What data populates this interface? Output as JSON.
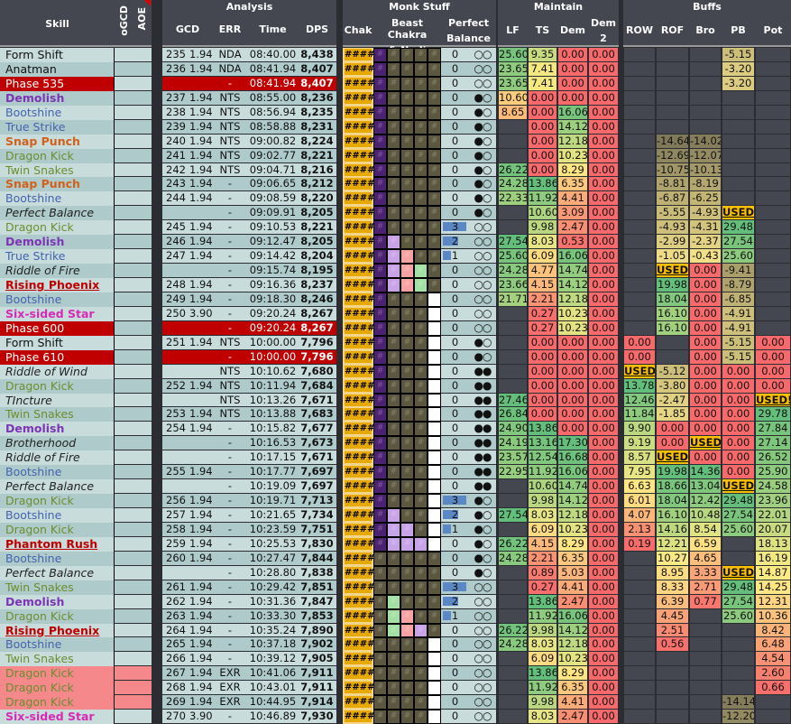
{
  "header": {
    "groups": {
      "analysis": "Analysis",
      "monk": "Monk Stuff",
      "maintain": "Maintain",
      "buffs": "Buffs"
    },
    "columns": {
      "skill": "Skill",
      "ogcd": "oGCD",
      "aoe": "AOE",
      "gcd": "GCD",
      "err": "ERR",
      "time": "Time",
      "dps": "DPS",
      "chak": "Chak",
      "beast_1": "Beast Chakra",
      "beast_2": "& Nadi",
      "pb_1": "Perfect",
      "pb_2": "Balance",
      "lf": "LF",
      "ts": "TS",
      "dem": "Dem",
      "dem2_1": "Dem",
      "dem2_2": "2",
      "row": "ROW",
      "rof": "ROF",
      "bro": "Bro",
      "pb": "PB",
      "pot": "Pot"
    }
  },
  "colors": {
    "phase_row": "#c00000",
    "used": "#ffc000",
    "low": "#f8696b",
    "mid": "#ffeb84",
    "high": "#63be7b",
    "chak": "#e7a800",
    "beast_purple": "#4b2272",
    "beast_lavender": "#c9a3e8",
    "beast_pink": "#f7a3a3",
    "beast_green": "#a3e0a3",
    "beast_white": "#ffffff",
    "beast_empty": "#5c573f"
  },
  "rows": [
    {
      "s": "Form Shift",
      "t": "plain",
      "n": "235",
      "g": "1.94",
      "e": "NDA",
      "tm": "08:40.00",
      "d": "8,438",
      "b": "P....",
      "pb": "0",
      "c": "○○",
      "lf": "25.60",
      "ts": "9.35",
      "dem": "0.00",
      "dem2": "0.00",
      "row": "",
      "rof": "",
      "bro": "",
      "pbf": "-5.15",
      "pot": ""
    },
    {
      "s": "Anatman",
      "t": "plain",
      "n": "236",
      "g": "1.94",
      "e": "NDA",
      "tm": "08:41.94",
      "d": "8,407",
      "b": "P....",
      "pb": "0",
      "c": "○○",
      "lf": "23.65",
      "ts": "7.41",
      "dem": "0.00",
      "dem2": "0.00",
      "row": "",
      "rof": "",
      "bro": "",
      "pbf": "-3.20",
      "pot": ""
    },
    {
      "s": "Phase 535",
      "t": "phase",
      "n": "",
      "g": "",
      "e": "-",
      "tm": "08:41.94",
      "d": "8,407",
      "b": "P....",
      "pb": "0",
      "c": "○○",
      "lf": "23.65",
      "ts": "7.41",
      "dem": "0.00",
      "dem2": "0.00",
      "row": "",
      "rof": "",
      "bro": "",
      "pbf": "-3.20",
      "pot": ""
    },
    {
      "s": "Demolish",
      "t": "demolish",
      "n": "237",
      "g": "1.94",
      "e": "NTS",
      "tm": "08:55.00",
      "d": "8,236",
      "b": "P....",
      "pb": "0",
      "c": "●○",
      "lf": "10.60",
      "ts": "0.00",
      "dem": "0.00",
      "dem2": "0.00",
      "row": "",
      "rof": "",
      "bro": "",
      "pbf": "",
      "pot": ""
    },
    {
      "s": "Bootshine",
      "t": "blue",
      "n": "238",
      "g": "1.94",
      "e": "NTS",
      "tm": "08:56.94",
      "d": "8,235",
      "b": "P....",
      "pb": "0",
      "c": "●○",
      "lf": "8.65",
      "ts": "0.00",
      "dem": "16.06",
      "dem2": "0.00",
      "row": "",
      "rof": "",
      "bro": "",
      "pbf": "",
      "pot": ""
    },
    {
      "s": "True Strike",
      "t": "blue",
      "n": "239",
      "g": "1.94",
      "e": "NTS",
      "tm": "08:58.88",
      "d": "8,231",
      "b": "P....",
      "pb": "0",
      "c": "●○",
      "lf": "",
      "ts": "0.00",
      "dem": "14.12",
      "dem2": "0.00",
      "row": "",
      "rof": "",
      "bro": "",
      "pbf": "",
      "pot": ""
    },
    {
      "s": "Snap Punch",
      "t": "snap",
      "n": "240",
      "g": "1.94",
      "e": "NTS",
      "tm": "09:00.82",
      "d": "8,224",
      "b": "P....",
      "pb": "0",
      "c": "●○",
      "lf": "",
      "ts": "0.00",
      "dem": "12.18",
      "dem2": "0.00",
      "row": "",
      "rof": "-14.64",
      "bro": "-14.02",
      "pbf": "",
      "pot": ""
    },
    {
      "s": "Dragon Kick",
      "t": "green",
      "n": "241",
      "g": "1.94",
      "e": "NTS",
      "tm": "09:02.77",
      "d": "8,221",
      "b": "P....",
      "pb": "0",
      "c": "●○",
      "lf": "",
      "ts": "0.00",
      "dem": "10.23",
      "dem2": "0.00",
      "row": "",
      "rof": "-12.69",
      "bro": "-12.07",
      "pbf": "",
      "pot": ""
    },
    {
      "s": "Twin Snakes",
      "t": "green",
      "n": "242",
      "g": "1.94",
      "e": "NTS",
      "tm": "09:04.71",
      "d": "8,216",
      "b": "P....",
      "pb": "0",
      "c": "●○",
      "lf": "26.22",
      "ts": "0.00",
      "dem": "8.29",
      "dem2": "0.00",
      "row": "",
      "rof": "-10.75",
      "bro": "-10.13",
      "pbf": "",
      "pot": ""
    },
    {
      "s": "Snap Punch",
      "t": "snap",
      "n": "243",
      "g": "1.94",
      "e": "-",
      "tm": "09:06.65",
      "d": "8,212",
      "b": "P....",
      "pb": "0",
      "c": "●○",
      "lf": "24.28",
      "ts": "13.86",
      "dem": "6.35",
      "dem2": "0.00",
      "row": "",
      "rof": "-8.81",
      "bro": "-8.19",
      "pbf": "",
      "pot": ""
    },
    {
      "s": "Bootshine",
      "t": "blue",
      "n": "244",
      "g": "1.94",
      "e": "-",
      "tm": "09:08.59",
      "d": "8,220",
      "b": "P....",
      "pb": "0",
      "c": "●○",
      "lf": "22.33",
      "ts": "11.92",
      "dem": "4.41",
      "dem2": "0.00",
      "row": "",
      "rof": "-6.87",
      "bro": "-6.25",
      "pbf": "",
      "pot": ""
    },
    {
      "s": "Perfect Balance",
      "t": "ital",
      "n": "",
      "g": "",
      "e": "-",
      "tm": "09:09.91",
      "d": "8,205",
      "b": "P....",
      "pb": "0",
      "c": "●○",
      "lf": "",
      "ts": "10.60",
      "dem": "3.09",
      "dem2": "0.00",
      "row": "",
      "rof": "-5.55",
      "bro": "-4.93",
      "pbf": "USED!",
      "pot": ""
    },
    {
      "s": "Dragon Kick",
      "t": "green",
      "n": "245",
      "g": "1.94",
      "e": "-",
      "tm": "09:10.53",
      "d": "8,221",
      "b": "P....",
      "pb": "3",
      "c": "○○",
      "lf": "",
      "ts": "9.98",
      "dem": "2.47",
      "dem2": "0.00",
      "row": "",
      "rof": "-4.93",
      "bro": "-4.31",
      "pbf": "29.48",
      "pot": ""
    },
    {
      "s": "Demolish",
      "t": "demolish",
      "n": "246",
      "g": "1.94",
      "e": "-",
      "tm": "09:12.47",
      "d": "8,205",
      "b": "PL...",
      "pb": "2",
      "c": "○○",
      "lf": "27.54",
      "ts": "8.03",
      "dem": "0.53",
      "dem2": "0.00",
      "row": "",
      "rof": "-2.99",
      "bro": "-2.37",
      "pbf": "27.54",
      "pot": ""
    },
    {
      "s": "True Strike",
      "t": "blue",
      "n": "247",
      "g": "1.94",
      "e": "-",
      "tm": "09:14.42",
      "d": "8,204",
      "b": "PLR..",
      "pb": "1",
      "c": "○○",
      "lf": "25.60",
      "ts": "6.09",
      "dem": "16.06",
      "dem2": "0.00",
      "row": "",
      "rof": "-1.05",
      "bro": "-0.43",
      "pbf": "25.60",
      "pot": ""
    },
    {
      "s": "Riddle of Fire",
      "t": "ital",
      "n": "",
      "g": "",
      "e": "-",
      "tm": "09:15.74",
      "d": "8,195",
      "b": "PLRG.",
      "pb": "0",
      "c": "○○",
      "lf": "24.28",
      "ts": "4.77",
      "dem": "14.74",
      "dem2": "0.00",
      "row": "",
      "rof": "USED!",
      "bro": "0.00",
      "pbf": "-9.41",
      "pot": ""
    },
    {
      "s": "Rising Phoenix",
      "t": "red",
      "n": "248",
      "g": "1.94",
      "e": "-",
      "tm": "09:16.36",
      "d": "8,237",
      "b": "PLRG.",
      "pb": "0",
      "c": "○○",
      "lf": "23.66",
      "ts": "4.15",
      "dem": "14.12",
      "dem2": "0.00",
      "row": "",
      "rof": "19.98",
      "bro": "0.00",
      "pbf": "-8.79",
      "pot": ""
    },
    {
      "s": "Bootshine",
      "t": "blue",
      "n": "249",
      "g": "1.94",
      "e": "-",
      "tm": "09:18.30",
      "d": "8,246",
      "b": "P...W",
      "pb": "0",
      "c": "○○",
      "lf": "21.71",
      "ts": "2.21",
      "dem": "12.18",
      "dem2": "0.00",
      "row": "",
      "rof": "18.04",
      "bro": "0.00",
      "pbf": "-6.85",
      "pot": ""
    },
    {
      "s": "Six-sided Star",
      "t": "six",
      "n": "250",
      "g": "3.90",
      "e": "-",
      "tm": "09:20.24",
      "d": "8,267",
      "b": "P...W",
      "pb": "0",
      "c": "○○",
      "lf": "",
      "ts": "0.27",
      "dem": "10.23",
      "dem2": "0.00",
      "row": "",
      "rof": "16.10",
      "bro": "0.00",
      "pbf": "-4.91",
      "pot": ""
    },
    {
      "s": "Phase 600",
      "t": "phase",
      "n": "",
      "g": "",
      "e": "-",
      "tm": "09:20.24",
      "d": "8,267",
      "b": "P...W",
      "pb": "0",
      "c": "○○",
      "lf": "",
      "ts": "0.27",
      "dem": "10.23",
      "dem2": "0.00",
      "row": "",
      "rof": "16.10",
      "bro": "0.00",
      "pbf": "-4.91",
      "pot": ""
    },
    {
      "s": "Form Shift",
      "t": "plain",
      "n": "251",
      "g": "1.94",
      "e": "NTS",
      "tm": "10:00.00",
      "d": "7,796",
      "b": "P...W",
      "pb": "0",
      "c": "●○",
      "lf": "",
      "ts": "0.00",
      "dem": "0.00",
      "dem2": "0.00",
      "row": "0.00",
      "rof": "",
      "bro": "0.00",
      "pbf": "-5.15",
      "pot": "0.00"
    },
    {
      "s": "Phase 610",
      "t": "phase",
      "n": "",
      "g": "",
      "e": "-",
      "tm": "10:00.00",
      "d": "7,796",
      "b": "P...W",
      "pb": "0",
      "c": "●○",
      "lf": "",
      "ts": "0.00",
      "dem": "0.00",
      "dem2": "0.00",
      "row": "0.00",
      "rof": "",
      "bro": "0.00",
      "pbf": "-5.15",
      "pot": "0.00"
    },
    {
      "s": "Riddle of Wind",
      "t": "ital",
      "n": "",
      "g": "",
      "e": "NTS",
      "tm": "10:10.62",
      "d": "7,680",
      "b": "P...W",
      "pb": "0",
      "c": "●●",
      "lf": "",
      "ts": "0.00",
      "dem": "0.00",
      "dem2": "0.00",
      "row": "USED!",
      "rof": "-5.12",
      "bro": "0.00",
      "pbf": "0.00",
      "pot": "0.00"
    },
    {
      "s": "Dragon Kick",
      "t": "green",
      "n": "252",
      "g": "1.94",
      "e": "NTS",
      "tm": "10:11.94",
      "d": "7,684",
      "b": "P...W",
      "pb": "0",
      "c": "●●",
      "lf": "",
      "ts": "0.00",
      "dem": "0.00",
      "dem2": "0.00",
      "row": "13.78",
      "rof": "-3.80",
      "bro": "0.00",
      "pbf": "0.00",
      "pot": "0.00"
    },
    {
      "s": "TIncture",
      "t": "ital",
      "n": "",
      "g": "",
      "e": "NTS",
      "tm": "10:13.26",
      "d": "7,671",
      "b": "P...W",
      "pb": "0",
      "c": "●●",
      "lf": "27.46",
      "ts": "0.00",
      "dem": "0.00",
      "dem2": "0.00",
      "row": "12.46",
      "rof": "-2.47",
      "bro": "0.00",
      "pbf": "0.00",
      "pot": "USED!"
    },
    {
      "s": "Twin Snakes",
      "t": "green",
      "n": "253",
      "g": "1.94",
      "e": "NTS",
      "tm": "10:13.88",
      "d": "7,683",
      "b": "P...W",
      "pb": "0",
      "c": "●●",
      "lf": "26.84",
      "ts": "0.00",
      "dem": "0.00",
      "dem2": "0.00",
      "row": "11.84",
      "rof": "-1.85",
      "bro": "0.00",
      "pbf": "0.00",
      "pot": "29.78"
    },
    {
      "s": "Demolish",
      "t": "demolish",
      "n": "254",
      "g": "1.94",
      "e": "-",
      "tm": "10:15.82",
      "d": "7,677",
      "b": "P...W",
      "pb": "0",
      "c": "●●",
      "lf": "24.90",
      "ts": "13.86",
      "dem": "0.00",
      "dem2": "0.00",
      "row": "9.90",
      "rof": "0.00",
      "bro": "0.00",
      "pbf": "0.00",
      "pot": "27.84"
    },
    {
      "s": "Brotherhood",
      "t": "ital",
      "n": "",
      "g": "",
      "e": "-",
      "tm": "10:16.53",
      "d": "7,673",
      "b": "P...W",
      "pb": "0",
      "c": "●●",
      "lf": "24.19",
      "ts": "13.16",
      "dem": "17.30",
      "dem2": "0.00",
      "row": "9.19",
      "rof": "0.00",
      "bro": "USED!",
      "pbf": "0.00",
      "pot": "27.14"
    },
    {
      "s": "Riddle of Fire",
      "t": "ital",
      "n": "",
      "g": "",
      "e": "-",
      "tm": "10:17.15",
      "d": "7,671",
      "b": "P...W",
      "pb": "0",
      "c": "●●",
      "lf": "23.57",
      "ts": "12.54",
      "dem": "16.68",
      "dem2": "0.00",
      "row": "8.57",
      "rof": "USED!",
      "bro": "0.00",
      "pbf": "0.00",
      "pot": "26.52"
    },
    {
      "s": "Bootshine",
      "t": "blue",
      "n": "255",
      "g": "1.94",
      "e": "-",
      "tm": "10:17.77",
      "d": "7,697",
      "b": "P...W",
      "pb": "0",
      "c": "●●",
      "lf": "22.95",
      "ts": "11.92",
      "dem": "16.06",
      "dem2": "0.00",
      "row": "7.95",
      "rof": "19.98",
      "bro": "14.36",
      "pbf": "0.00",
      "pot": "25.90"
    },
    {
      "s": "Perfect Balance",
      "t": "ital",
      "n": "",
      "g": "",
      "e": "-",
      "tm": "10:19.09",
      "d": "7,697",
      "b": "P...W",
      "pb": "0",
      "c": "●●",
      "lf": "",
      "ts": "10.60",
      "dem": "14.74",
      "dem2": "0.00",
      "row": "6.63",
      "rof": "18.66",
      "bro": "13.04",
      "pbf": "USED!",
      "pot": "24.58"
    },
    {
      "s": "Dragon Kick",
      "t": "green",
      "n": "256",
      "g": "1.94",
      "e": "-",
      "tm": "10:19.71",
      "d": "7,713",
      "b": "P...W",
      "pb": "3",
      "c": "●○",
      "lf": "",
      "ts": "9.98",
      "dem": "14.12",
      "dem2": "0.00",
      "row": "6.01",
      "rof": "18.04",
      "bro": "12.42",
      "pbf": "29.48",
      "pot": "23.96"
    },
    {
      "s": "Bootshine",
      "t": "blue",
      "n": "257",
      "g": "1.94",
      "e": "-",
      "tm": "10:21.65",
      "d": "7,734",
      "b": "PL..W",
      "pb": "2",
      "c": "●○",
      "lf": "27.54",
      "ts": "8.03",
      "dem": "12.18",
      "dem2": "0.00",
      "row": "4.07",
      "rof": "16.10",
      "bro": "10.48",
      "pbf": "27.54",
      "pot": "22.01"
    },
    {
      "s": "Dragon Kick",
      "t": "green",
      "n": "258",
      "g": "1.94",
      "e": "-",
      "tm": "10:23.59",
      "d": "7,751",
      "b": "PLL.W",
      "pb": "1",
      "c": "●○",
      "lf": "",
      "ts": "6.09",
      "dem": "10.23",
      "dem2": "0.00",
      "row": "2.13",
      "rof": "14.16",
      "bro": "8.54",
      "pbf": "25.60",
      "pot": "20.07"
    },
    {
      "s": "Phantom Rush",
      "t": "red",
      "n": "259",
      "g": "1.94",
      "e": "-",
      "tm": "10:25.53",
      "d": "7,830",
      "b": "PLLLW",
      "pb": "0",
      "c": "●○",
      "lf": "26.22",
      "ts": "4.15",
      "dem": "8.29",
      "dem2": "0.00",
      "row": "0.19",
      "rof": "12.21",
      "bro": "6.59",
      "pbf": "",
      "pot": "18.13"
    },
    {
      "s": "Bootshine",
      "t": "blue",
      "n": "260",
      "g": "1.94",
      "e": "-",
      "tm": "10:27.47",
      "d": "7,844",
      "b": ".....",
      "pb": "0",
      "c": "●○",
      "lf": "24.28",
      "ts": "2.21",
      "dem": "6.35",
      "dem2": "0.00",
      "row": "",
      "rof": "10.27",
      "bro": "4.65",
      "pbf": "",
      "pot": "16.19"
    },
    {
      "s": "Perfect Balance",
      "t": "ital",
      "n": "",
      "g": "",
      "e": "-",
      "tm": "10:28.80",
      "d": "7,838",
      "b": ".....",
      "pb": "0",
      "c": "●○",
      "lf": "",
      "ts": "0.89",
      "dem": "5.03",
      "dem2": "0.00",
      "row": "",
      "rof": "8.95",
      "bro": "3.33",
      "pbf": "USED!",
      "pot": "14.87"
    },
    {
      "s": "Twin Snakes",
      "t": "green",
      "n": "261",
      "g": "1.94",
      "e": "-",
      "tm": "10:29.42",
      "d": "7,851",
      "b": ".....",
      "pb": "3",
      "c": "○○",
      "lf": "",
      "ts": "0.27",
      "dem": "4.41",
      "dem2": "0.00",
      "row": "",
      "rof": "8.33",
      "bro": "2.71",
      "pbf": "29.48",
      "pot": "14.25"
    },
    {
      "s": "Demolish",
      "t": "demolish",
      "n": "262",
      "g": "1.94",
      "e": "-",
      "tm": "10:31.36",
      "d": "7,847",
      "b": ".G...",
      "pb": "2",
      "c": "○○",
      "lf": "",
      "ts": "13.86",
      "dem": "2.47",
      "dem2": "0.00",
      "row": "",
      "rof": "6.39",
      "bro": "0.77",
      "pbf": "27.54",
      "pot": "12.31"
    },
    {
      "s": "Dragon Kick",
      "t": "green",
      "n": "263",
      "g": "1.94",
      "e": "-",
      "tm": "10:33.30",
      "d": "7,853",
      "b": ".GR..",
      "pb": "1",
      "c": "○○",
      "lf": "",
      "ts": "11.92",
      "dem": "16.06",
      "dem2": "0.00",
      "row": "",
      "rof": "4.45",
      "bro": "",
      "pbf": "25.60",
      "pot": "10.36"
    },
    {
      "s": "Rising Phoenix",
      "t": "red",
      "n": "264",
      "g": "1.94",
      "e": "-",
      "tm": "10:35.24",
      "d": "7,890",
      "b": ".GRL.",
      "pb": "0",
      "c": "○○",
      "lf": "26.22",
      "ts": "9.98",
      "dem": "14.12",
      "dem2": "0.00",
      "row": "",
      "rof": "2.51",
      "bro": "",
      "pbf": "",
      "pot": "8.42"
    },
    {
      "s": "Bootshine",
      "t": "blue",
      "n": "265",
      "g": "1.94",
      "e": "-",
      "tm": "10:37.18",
      "d": "7,902",
      "b": "....W",
      "pb": "0",
      "c": "○○",
      "lf": "24.28",
      "ts": "8.03",
      "dem": "12.18",
      "dem2": "0.00",
      "row": "",
      "rof": "0.56",
      "bro": "",
      "pbf": "",
      "pot": "6.48"
    },
    {
      "s": "Twin Snakes",
      "t": "green",
      "n": "266",
      "g": "1.94",
      "e": "-",
      "tm": "10:39.12",
      "d": "7,905",
      "b": "....W",
      "pb": "0",
      "c": "○○",
      "lf": "",
      "ts": "6.09",
      "dem": "10.23",
      "dem2": "0.00",
      "row": "",
      "rof": "",
      "bro": "",
      "pbf": "",
      "pot": "4.54"
    },
    {
      "s": "Dragon Kick",
      "t": "green",
      "hl": true,
      "n": "267",
      "g": "1.94",
      "e": "EXR",
      "tm": "10:41.06",
      "d": "7,911",
      "b": "....W",
      "pb": "0",
      "c": "○○",
      "lf": "",
      "ts": "13.86",
      "dem": "8.29",
      "dem2": "0.00",
      "row": "",
      "rof": "",
      "bro": "",
      "pbf": "",
      "pot": "2.60"
    },
    {
      "s": "Dragon Kick",
      "t": "green",
      "hl": true,
      "n": "268",
      "g": "1.94",
      "e": "EXR",
      "tm": "10:43.01",
      "d": "7,911",
      "b": "....W",
      "pb": "0",
      "c": "○○",
      "lf": "",
      "ts": "11.92",
      "dem": "6.35",
      "dem2": "0.00",
      "row": "",
      "rof": "",
      "bro": "",
      "pbf": "",
      "pot": "0.66"
    },
    {
      "s": "Dragon Kick",
      "t": "green",
      "hl": true,
      "n": "269",
      "g": "1.94",
      "e": "EXR",
      "tm": "10:44.95",
      "d": "7,914",
      "b": "....W",
      "pb": "0",
      "c": "○○",
      "lf": "",
      "ts": "9.98",
      "dem": "4.41",
      "dem2": "0.00",
      "row": "",
      "rof": "",
      "bro": "",
      "pbf": "-14.14",
      "pot": ""
    },
    {
      "s": "Six-sided Star",
      "t": "six",
      "n": "270",
      "g": "3.90",
      "e": "-",
      "tm": "10:46.89",
      "d": "7,930",
      "b": "....W",
      "pb": "0",
      "c": "○○",
      "lf": "",
      "ts": "8.03",
      "dem": "2.47",
      "dem2": "0.00",
      "row": "",
      "rof": "",
      "bro": "",
      "pbf": "-12.20",
      "pot": ""
    }
  ]
}
